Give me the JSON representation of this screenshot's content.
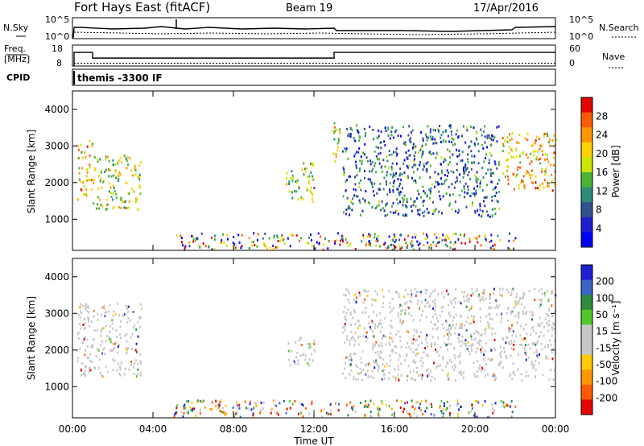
{
  "header": {
    "station": "Fort Hays East (fitACF)",
    "beam": "Beam 19",
    "date": "17/Apr/2016"
  },
  "strips": {
    "noise": {
      "left_label": "N.Sky",
      "right_label": "N.Search",
      "left_ticks": [
        "10^5",
        "10^0"
      ],
      "right_ticks": [
        "10^5",
        "10^0"
      ]
    },
    "freq": {
      "left_label_1": "Freq.",
      "left_label_2": "[MHz]",
      "right_label": "Nave",
      "left_ticks": [
        "18",
        "8"
      ],
      "right_ticks": [
        "60",
        "0"
      ],
      "freq_levels_mhz": [
        {
          "start_h": 0.0,
          "end_h": 1.0,
          "value": 14.5
        },
        {
          "start_h": 1.0,
          "end_h": 13.0,
          "value": 11.8
        },
        {
          "start_h": 13.0,
          "end_h": 24.0,
          "value": 14.5
        }
      ],
      "nave_level": 8
    },
    "cpid": {
      "label": "CPID",
      "program": "themis -3300 IF"
    }
  },
  "chart_data": [
    {
      "type": "heatmap",
      "quantity": "Power",
      "ylabel": "Slant Range [km]",
      "ylim": [
        150,
        4500
      ],
      "yticks": [
        "1000",
        "2000",
        "3000",
        "4000"
      ],
      "xlim": [
        0,
        24
      ],
      "colorbar_label": "Power [dB]",
      "colorbar_ticks": [
        "28",
        "24",
        "20",
        "16",
        "12",
        "8",
        "4"
      ],
      "colorbar_colors": [
        "#e60000",
        "#ff5a00",
        "#ff9600",
        "#ffd200",
        "#c8e600",
        "#4bb432",
        "#2d8c78",
        "#32508c",
        "#1e1ed2",
        "#0000ff"
      ],
      "regions_echo": [
        {
          "t0": 0.2,
          "t1": 1.0,
          "r0": 1550,
          "r1": 3200,
          "level": 22
        },
        {
          "t0": 1.0,
          "t1": 3.4,
          "r0": 1250,
          "r1": 2800,
          "level": 18
        },
        {
          "t0": 10.6,
          "t1": 12.0,
          "r0": 1500,
          "r1": 2600,
          "level": 16
        },
        {
          "t0": 12.9,
          "t1": 13.4,
          "r0": 2600,
          "r1": 3700,
          "level": 20
        },
        {
          "t0": 13.4,
          "t1": 21.2,
          "r0": 1100,
          "r1": 3600,
          "level": 10
        },
        {
          "t0": 21.3,
          "t1": 24.0,
          "r0": 1800,
          "r1": 3400,
          "level": 22
        }
      ]
    },
    {
      "type": "heatmap",
      "quantity": "Velocity",
      "ylabel": "Slant Range [km]",
      "ylim": [
        150,
        4500
      ],
      "yticks": [
        "1000",
        "2000",
        "3000",
        "4000"
      ],
      "xlim": [
        0,
        24
      ],
      "xticks": [
        "00:00",
        "04:00",
        "08:00",
        "12:00",
        "16:00",
        "20:00",
        "00:00"
      ],
      "xlabel": "Time UT",
      "colorbar_label": "Velocity [m s⁻¹]",
      "colorbar_ticks": [
        "200",
        "100",
        "50",
        "15",
        "-15",
        "-50",
        "-100",
        "-200"
      ],
      "colorbar_colors": [
        "#1e1ed2",
        "#3c64c8",
        "#2d8c3c",
        "#50c828",
        "#c8c8c8",
        "#c8c8c8",
        "#ffc800",
        "#ff9600",
        "#ff5a00",
        "#e60000"
      ],
      "regions_ground_scatter": [
        {
          "t0": 0.2,
          "t1": 3.4,
          "r0": 1300,
          "r1": 3300
        },
        {
          "t0": 10.6,
          "t1": 12.0,
          "r0": 1600,
          "r1": 2400
        },
        {
          "t0": 13.4,
          "t1": 24.0,
          "r0": 1200,
          "r1": 3700
        }
      ]
    }
  ]
}
